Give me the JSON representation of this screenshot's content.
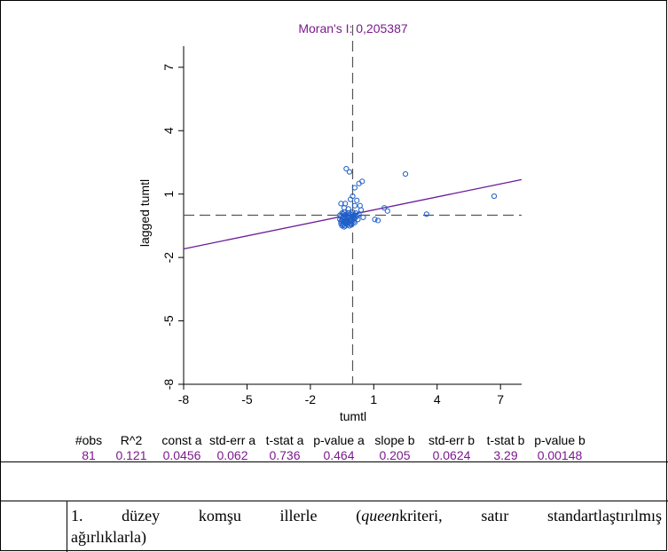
{
  "chart_data": {
    "type": "scatter",
    "title": "Moran's I: 0,205387",
    "xlabel": "tumtl",
    "ylabel": "lagged tumtl",
    "xlim": [
      -8,
      8
    ],
    "ylim": [
      -8,
      8
    ],
    "xticks": [
      "-8",
      "-5",
      "-2",
      "1",
      "4",
      "7"
    ],
    "yticks": [
      "7",
      "4",
      "1",
      "-2",
      "-5",
      "-8"
    ],
    "grid": false,
    "mean_x": 0,
    "mean_y": 0,
    "regression": {
      "intercept": 0.0456,
      "slope": 0.205
    },
    "points": [
      [
        -0.3,
        2.2
      ],
      [
        -0.15,
        2.05
      ],
      [
        2.5,
        1.95
      ],
      [
        0.3,
        1.5
      ],
      [
        0.45,
        1.6
      ],
      [
        0.1,
        1.3
      ],
      [
        6.7,
        0.9
      ],
      [
        -0.35,
        0.55
      ],
      [
        -0.1,
        0.75
      ],
      [
        0.0,
        0.9
      ],
      [
        0.2,
        0.7
      ],
      [
        0.35,
        0.45
      ],
      [
        -0.55,
        0.55
      ],
      [
        0.1,
        0.45
      ],
      [
        -0.2,
        0.3
      ],
      [
        -0.4,
        0.35
      ],
      [
        1.5,
        0.35
      ],
      [
        1.65,
        0.2
      ],
      [
        3.5,
        0.05
      ],
      [
        0.4,
        0.25
      ],
      [
        0.5,
        -0.1
      ],
      [
        1.05,
        -0.2
      ],
      [
        1.2,
        -0.25
      ],
      [
        -0.5,
        0.1
      ],
      [
        -0.4,
        0.15
      ],
      [
        -0.3,
        0.05
      ],
      [
        -0.2,
        0.1
      ],
      [
        -0.1,
        0.05
      ],
      [
        0.0,
        0.15
      ],
      [
        0.15,
        0.1
      ],
      [
        -0.55,
        -0.05
      ],
      [
        -0.45,
        -0.1
      ],
      [
        -0.35,
        -0.15
      ],
      [
        -0.25,
        -0.05
      ],
      [
        -0.15,
        -0.1
      ],
      [
        -0.05,
        -0.2
      ],
      [
        0.05,
        -0.05
      ],
      [
        0.1,
        -0.15
      ],
      [
        0.2,
        -0.05
      ],
      [
        -0.5,
        -0.25
      ],
      [
        -0.4,
        -0.3
      ],
      [
        -0.3,
        -0.35
      ],
      [
        -0.2,
        -0.3
      ],
      [
        -0.1,
        -0.4
      ],
      [
        0.0,
        -0.25
      ],
      [
        0.1,
        -0.35
      ],
      [
        -0.55,
        -0.4
      ],
      [
        -0.45,
        -0.45
      ],
      [
        -0.35,
        -0.5
      ],
      [
        -0.25,
        -0.45
      ],
      [
        -0.15,
        -0.5
      ],
      [
        -0.05,
        -0.45
      ],
      [
        -0.5,
        -0.5
      ],
      [
        -0.4,
        -0.55
      ],
      [
        -0.3,
        -0.4
      ],
      [
        -0.2,
        0.0
      ],
      [
        0.0,
        0.05
      ],
      [
        -0.6,
        0.0
      ],
      [
        -0.45,
        0.05
      ],
      [
        -0.35,
        0.0
      ],
      [
        -0.25,
        -0.2
      ],
      [
        -0.15,
        -0.25
      ],
      [
        -0.05,
        -0.05
      ],
      [
        0.05,
        -0.3
      ],
      [
        0.25,
        -0.2
      ],
      [
        0.3,
        0.05
      ],
      [
        -0.6,
        -0.2
      ],
      [
        -0.5,
        -0.15
      ],
      [
        -0.4,
        -0.2
      ],
      [
        -0.3,
        -0.25
      ],
      [
        -0.2,
        -0.15
      ],
      [
        -0.1,
        -0.25
      ],
      [
        0.0,
        -0.1
      ],
      [
        0.1,
        0.0
      ],
      [
        -0.55,
        -0.3
      ],
      [
        -0.45,
        -0.35
      ],
      [
        -0.35,
        -0.3
      ],
      [
        -0.25,
        -0.35
      ],
      [
        -0.15,
        -0.35
      ],
      [
        -0.05,
        -0.3
      ],
      [
        0.05,
        -0.15
      ]
    ]
  },
  "stats": {
    "headers": [
      "#obs",
      "R^2",
      "const a",
      "std-err a",
      "t-stat a",
      "p-value a",
      "slope b",
      "std-err b",
      "t-stat b",
      "p-value b"
    ],
    "values": [
      "81",
      "0.121",
      "0.0456",
      "0.062",
      "0.736",
      "0.464",
      "0.205",
      "0.0624",
      "3.29",
      "0.00148"
    ]
  },
  "caption": {
    "line1_a": "1. düzey komşu illerle (",
    "line1_italic": "queen",
    "line1_b": "kriteri, satır standartlaştırılmış",
    "line2": "ağırlıklarla)"
  },
  "colors": {
    "title": "#7b1a8c",
    "points": "#1f5fc8",
    "line": "#6a1b9a",
    "stat_values": "#7b1a8c"
  }
}
